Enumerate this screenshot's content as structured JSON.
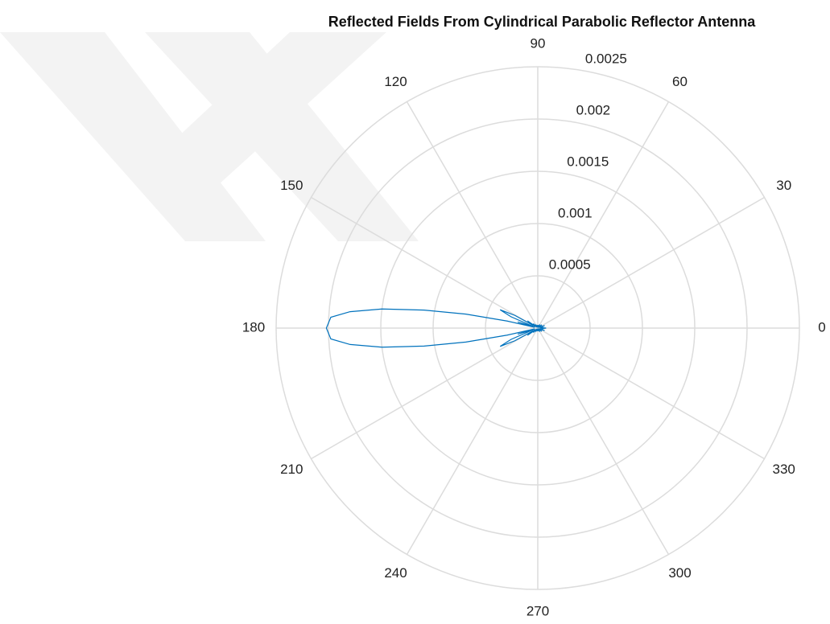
{
  "chart_data": {
    "type": "polar",
    "title": "Reflected Fields From Cylindrical Parabolic Reflector Antenna",
    "thetaticks": [
      0,
      30,
      60,
      90,
      120,
      150,
      180,
      210,
      240,
      270,
      300,
      330
    ],
    "rlim": [
      0,
      0.0025
    ],
    "rticks": [
      0.0005,
      0.001,
      0.0015,
      0.002,
      0.0025
    ],
    "grid": true,
    "series": [
      {
        "color": "#0072bd",
        "theta": [
          0,
          10,
          20,
          30,
          40,
          50,
          60,
          70,
          80,
          90,
          100,
          110,
          120,
          130,
          135,
          140,
          145,
          148,
          151,
          154,
          157,
          160,
          163,
          165,
          167,
          169,
          171,
          173,
          175,
          177,
          180,
          183,
          185,
          187,
          189,
          191,
          193,
          195,
          197,
          200,
          203,
          206,
          209,
          212,
          215,
          220,
          225,
          230,
          240,
          250,
          260,
          270,
          280,
          290,
          300,
          310,
          320,
          330,
          340,
          350,
          360
        ],
        "values": [
          8e-05,
          3e-05,
          7e-05,
          2e-05,
          5e-05,
          1e-05,
          4e-05,
          1e-05,
          3e-05,
          5e-06,
          3e-05,
          1e-05,
          4e-05,
          1e-05,
          6e-05,
          2e-05,
          0.00012,
          3e-05,
          0.00025,
          0.0004,
          0.00028,
          5e-05,
          0.0002,
          3e-05,
          0.0003,
          0.0007,
          0.0011,
          0.0015,
          0.0018,
          0.00198,
          0.00202,
          0.00198,
          0.0018,
          0.0015,
          0.0011,
          0.0007,
          0.0003,
          3e-05,
          0.0002,
          5e-05,
          0.00028,
          0.0004,
          0.00025,
          3e-05,
          0.00012,
          2e-05,
          6e-05,
          1e-05,
          4e-05,
          1e-05,
          3e-05,
          5e-06,
          3e-05,
          1e-05,
          4e-05,
          1e-05,
          5e-05,
          2e-05,
          7e-05,
          3e-05,
          8e-05
        ]
      }
    ]
  }
}
